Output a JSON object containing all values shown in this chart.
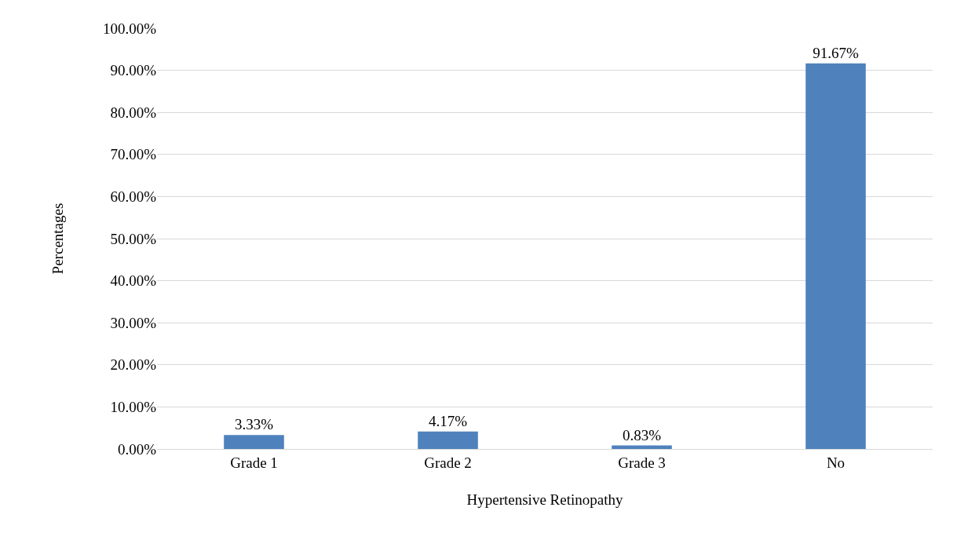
{
  "chart_data": {
    "type": "bar",
    "xlabel": "Hypertensive Retinopathy",
    "ylabel": "Percentages",
    "categories": [
      "Grade 1",
      "Grade 2",
      "Grade 3",
      "No"
    ],
    "values": [
      3.33,
      4.17,
      0.83,
      91.67
    ],
    "value_labels": [
      "3.33%",
      "4.17%",
      "0.83%",
      "91.67%"
    ],
    "color": "#4f81bd",
    "ylim": [
      0,
      100
    ],
    "yticks": [
      {
        "value": 0,
        "label": "0.00%"
      },
      {
        "value": 10,
        "label": "10.00%"
      },
      {
        "value": 20,
        "label": "20.00%"
      },
      {
        "value": 30,
        "label": "30.00%"
      },
      {
        "value": 40,
        "label": "40.00%"
      },
      {
        "value": 50,
        "label": "50.00%"
      },
      {
        "value": 60,
        "label": "60.00%"
      },
      {
        "value": 70,
        "label": "70.00%"
      },
      {
        "value": 80,
        "label": "80.00%"
      },
      {
        "value": 90,
        "label": "90.00%"
      },
      {
        "value": 100,
        "label": "100.00%"
      }
    ],
    "grid": "y"
  }
}
